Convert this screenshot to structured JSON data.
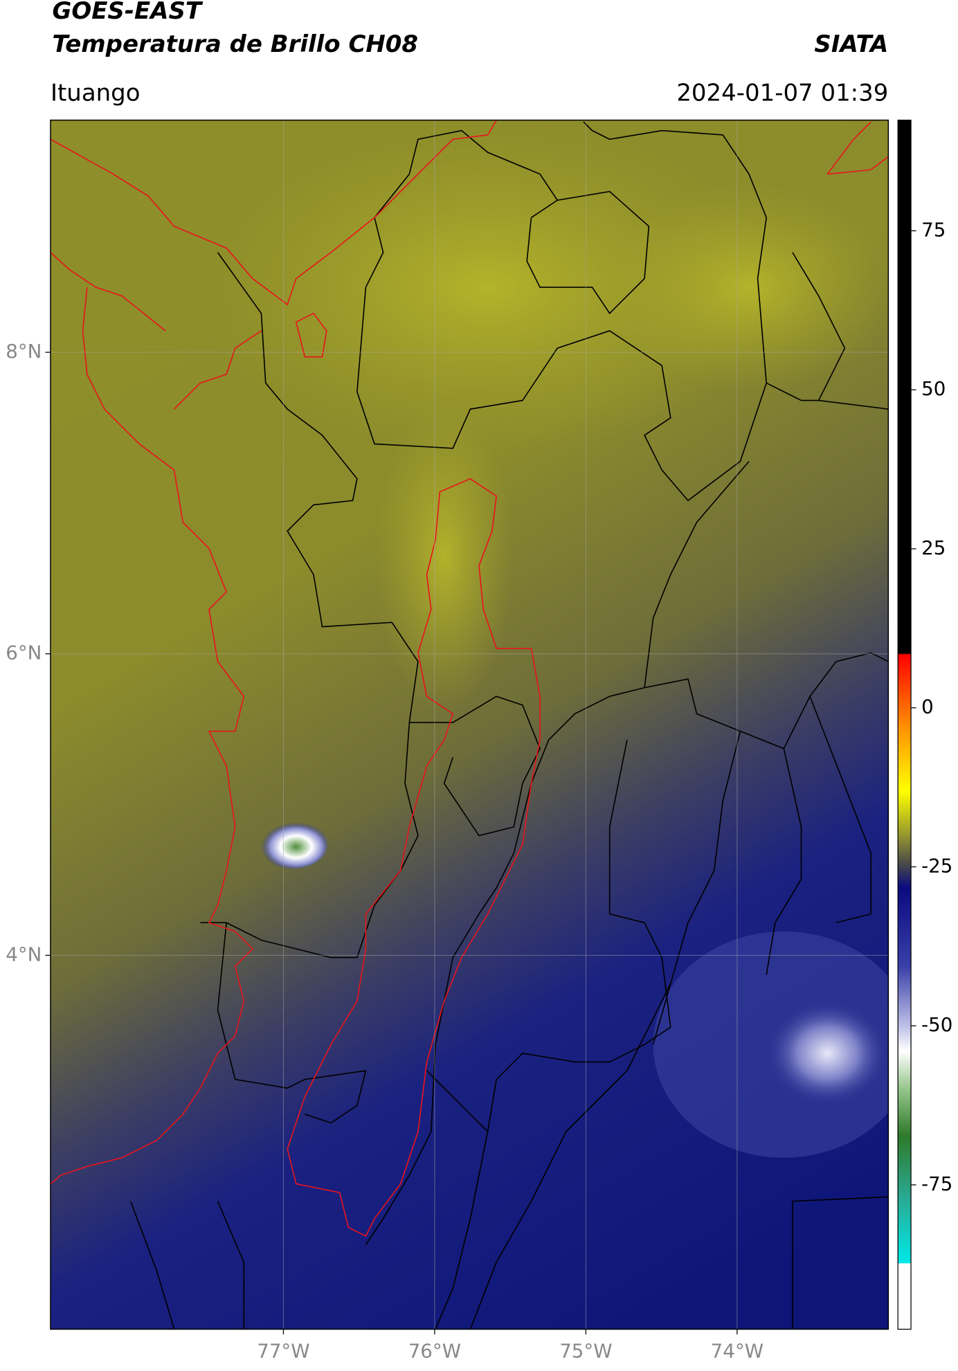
{
  "header": {
    "title": "GOES-EAST",
    "subtitle": "Temperatura de Brillo CH08",
    "brand": "SIATA",
    "location": "Ituango",
    "datetime": "2024-01-07 01:39"
  },
  "map": {
    "lonlim": [
      -78.54,
      -73.0
    ],
    "latlim": [
      1.52,
      9.54
    ],
    "lon_ticks": [
      {
        "value": -77,
        "label": "77°W"
      },
      {
        "value": -76,
        "label": "76°W"
      },
      {
        "value": -75,
        "label": "75°W"
      },
      {
        "value": -74,
        "label": "74°W"
      }
    ],
    "lat_ticks": [
      {
        "value": 8,
        "label": "8°N"
      },
      {
        "value": 6,
        "label": "6°N"
      },
      {
        "value": 4,
        "label": "4°N"
      }
    ],
    "grid": true
  },
  "colorbar": {
    "lim": [
      -97.7,
      92.4
    ],
    "ticks": [
      75,
      50,
      25,
      0,
      -25,
      -50,
      -75
    ]
  }
}
